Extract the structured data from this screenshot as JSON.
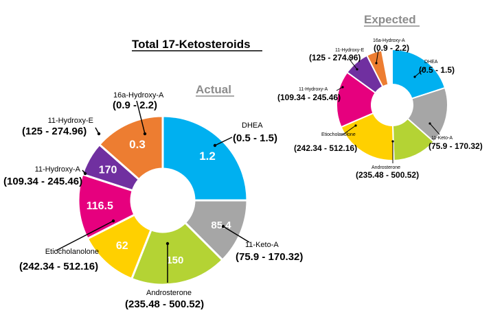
{
  "colors": {
    "DHEA": "#00b0f0",
    "11-Keto-A": "#a6a6a6",
    "Androsterone": "#b4d334",
    "Etiocholanolone": "#ffd000",
    "11-Hydroxy-A": "#e6007e",
    "11-Hydroxy-E": "#7030a0",
    "16a-Hydroxy-A": "#ed7d31"
  },
  "chart_data": [
    {
      "type": "pie",
      "title": "Total 17-Ketosteroids",
      "subtitle": "Actual",
      "categories": [
        "DHEA",
        "11-Keto-A",
        "Androsterone",
        "Etiocholanolone",
        "11-Hydroxy-A",
        "11-Hydroxy-E",
        "16a-Hydroxy-A"
      ],
      "values": [
        1.2,
        85.4,
        150,
        62,
        116.5,
        170,
        0.3
      ],
      "slice_fractions": [
        0.25,
        0.125,
        0.185,
        0.115,
        0.125,
        0.065,
        0.135
      ],
      "value_labels": [
        "1.2",
        "85.4",
        "150",
        "62",
        "116.5",
        "170",
        "0.3"
      ],
      "ranges": [
        "(0.5 - 1.5)",
        "(75.9 - 170.32)",
        "(235.48 - 500.52)",
        "(242.34 - 512.16)",
        "(109.34 - 245.46)",
        "(125 - 274.96)",
        "(0.9 - 2.2)"
      ]
    },
    {
      "type": "pie",
      "title": "Expected",
      "categories": [
        "DHEA",
        "11-Keto-A",
        "Androsterone",
        "Etiocholanolone",
        "11-Hydroxy-A",
        "11-Hydroxy-E",
        "16a-Hydroxy-A"
      ],
      "slice_fractions": [
        0.2,
        0.165,
        0.13,
        0.19,
        0.165,
        0.075,
        0.045
      ],
      "ranges": [
        "(0.5 - 1.5)",
        "(75.9 - 170.32)",
        "(235.48 - 500.52)",
        "(242.34 - 512.16)",
        "(109.34 - 245.46)",
        "(125 - 274.96)",
        "(0.9 - 2.2)"
      ]
    }
  ]
}
